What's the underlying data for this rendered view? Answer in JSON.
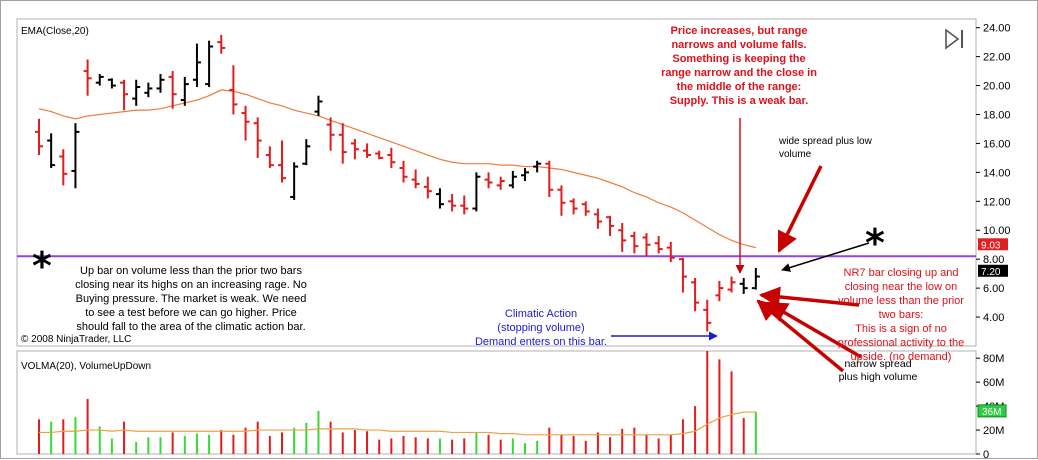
{
  "chart_data": [
    {
      "type": "ohlc",
      "indicator_label": "EMA(Close,20)",
      "ylim": [
        2.0,
        24.6
      ],
      "y_ticks": [
        "24.00",
        "22.00",
        "20.00",
        "18.00",
        "16.00",
        "14.00",
        "12.00",
        "10.00",
        "8.00",
        "6.00",
        "4.00"
      ],
      "y_tick_values": [
        24,
        22,
        20,
        18,
        16,
        14,
        12,
        10,
        8,
        6,
        4
      ],
      "bars": [
        {
          "h": 17.7,
          "l": 15.2,
          "o": 16.8,
          "c": 15.8,
          "color": "red"
        },
        {
          "h": 16.7,
          "l": 14.3,
          "o": 16.2,
          "c": 14.5,
          "color": "black"
        },
        {
          "h": 15.6,
          "l": 13.1,
          "o": 15.1,
          "c": 13.9,
          "color": "red"
        },
        {
          "h": 17.4,
          "l": 12.9,
          "o": 14.1,
          "c": 16.8,
          "color": "black"
        },
        {
          "h": 21.8,
          "l": 19.3,
          "o": 21.0,
          "c": 20.5,
          "color": "red"
        },
        {
          "h": 20.8,
          "l": 20.0,
          "o": 20.2,
          "c": 20.6,
          "color": "black"
        },
        {
          "h": 20.5,
          "l": 19.8,
          "o": 20.4,
          "c": 20.0,
          "color": "black"
        },
        {
          "h": 20.4,
          "l": 18.3,
          "o": 20.2,
          "c": 19.4,
          "color": "red"
        },
        {
          "h": 20.4,
          "l": 18.6,
          "o": 19.1,
          "c": 19.9,
          "color": "black"
        },
        {
          "h": 20.2,
          "l": 19.2,
          "o": 19.5,
          "c": 19.8,
          "color": "black"
        },
        {
          "h": 20.8,
          "l": 19.5,
          "o": 19.8,
          "c": 20.4,
          "color": "black"
        },
        {
          "h": 21.0,
          "l": 18.4,
          "o": 20.6,
          "c": 19.4,
          "color": "red"
        },
        {
          "h": 20.6,
          "l": 18.6,
          "o": 19.0,
          "c": 20.1,
          "color": "black"
        },
        {
          "h": 22.9,
          "l": 19.9,
          "o": 20.4,
          "c": 21.6,
          "color": "black"
        },
        {
          "h": 23.1,
          "l": 19.9,
          "o": 20.1,
          "c": 22.7,
          "color": "black"
        },
        {
          "h": 23.5,
          "l": 22.2,
          "o": 23.0,
          "c": 22.6,
          "color": "red"
        },
        {
          "h": 21.4,
          "l": 18.0,
          "o": 19.7,
          "c": 18.7,
          "color": "red"
        },
        {
          "h": 18.6,
          "l": 16.2,
          "o": 18.1,
          "c": 17.5,
          "color": "red"
        },
        {
          "h": 17.8,
          "l": 15.0,
          "o": 17.4,
          "c": 16.2,
          "color": "red"
        },
        {
          "h": 15.8,
          "l": 14.3,
          "o": 15.2,
          "c": 14.5,
          "color": "red"
        },
        {
          "h": 16.2,
          "l": 13.3,
          "o": 14.5,
          "c": 13.6,
          "color": "red"
        },
        {
          "h": 14.7,
          "l": 12.1,
          "o": 12.3,
          "c": 14.4,
          "color": "black"
        },
        {
          "h": 16.3,
          "l": 14.5,
          "o": 14.6,
          "c": 15.8,
          "color": "black"
        },
        {
          "h": 19.3,
          "l": 17.9,
          "o": 18.2,
          "c": 18.9,
          "color": "black"
        },
        {
          "h": 17.8,
          "l": 15.5,
          "o": 17.3,
          "c": 16.6,
          "color": "red"
        },
        {
          "h": 17.4,
          "l": 14.6,
          "o": 16.6,
          "c": 15.4,
          "color": "red"
        },
        {
          "h": 16.3,
          "l": 14.9,
          "o": 16.0,
          "c": 15.6,
          "color": "red"
        },
        {
          "h": 16.0,
          "l": 15.0,
          "o": 15.5,
          "c": 15.2,
          "color": "red"
        },
        {
          "h": 15.5,
          "l": 14.9,
          "o": 15.3,
          "c": 15.0,
          "color": "red"
        },
        {
          "h": 15.7,
          "l": 14.3,
          "o": 15.2,
          "c": 14.7,
          "color": "red"
        },
        {
          "h": 14.8,
          "l": 13.3,
          "o": 14.3,
          "c": 13.7,
          "color": "red"
        },
        {
          "h": 14.2,
          "l": 12.9,
          "o": 13.5,
          "c": 13.2,
          "color": "red"
        },
        {
          "h": 13.7,
          "l": 12.2,
          "o": 13.0,
          "c": 12.7,
          "color": "red"
        },
        {
          "h": 12.9,
          "l": 11.5,
          "o": 12.5,
          "c": 11.8,
          "color": "black"
        },
        {
          "h": 12.5,
          "l": 11.3,
          "o": 12.0,
          "c": 11.7,
          "color": "red"
        },
        {
          "h": 12.4,
          "l": 11.1,
          "o": 11.7,
          "c": 11.5,
          "color": "red"
        },
        {
          "h": 14.0,
          "l": 11.3,
          "o": 11.5,
          "c": 13.7,
          "color": "black"
        },
        {
          "h": 14.0,
          "l": 12.9,
          "o": 13.5,
          "c": 13.3,
          "color": "red"
        },
        {
          "h": 13.7,
          "l": 12.8,
          "o": 13.1,
          "c": 13.4,
          "color": "red"
        },
        {
          "h": 14.1,
          "l": 12.9,
          "o": 13.1,
          "c": 13.7,
          "color": "black"
        },
        {
          "h": 14.3,
          "l": 13.4,
          "o": 13.8,
          "c": 14.0,
          "color": "black"
        },
        {
          "h": 14.8,
          "l": 14.0,
          "o": 14.4,
          "c": 14.6,
          "color": "black"
        },
        {
          "h": 14.8,
          "l": 12.3,
          "o": 14.6,
          "c": 12.8,
          "color": "red"
        },
        {
          "h": 13.1,
          "l": 11.0,
          "o": 12.8,
          "c": 11.9,
          "color": "red"
        },
        {
          "h": 12.2,
          "l": 11.1,
          "o": 12.0,
          "c": 11.5,
          "color": "red"
        },
        {
          "h": 12.0,
          "l": 11.0,
          "o": 11.8,
          "c": 11.3,
          "color": "red"
        },
        {
          "h": 11.5,
          "l": 10.1,
          "o": 11.1,
          "c": 10.6,
          "color": "red"
        },
        {
          "h": 11.0,
          "l": 9.6,
          "o": 10.9,
          "c": 10.3,
          "color": "red"
        },
        {
          "h": 10.5,
          "l": 8.5,
          "o": 10.0,
          "c": 9.3,
          "color": "red"
        },
        {
          "h": 9.9,
          "l": 8.4,
          "o": 9.6,
          "c": 8.9,
          "color": "red"
        },
        {
          "h": 9.8,
          "l": 8.2,
          "o": 9.5,
          "c": 9.0,
          "color": "red"
        },
        {
          "h": 9.6,
          "l": 8.4,
          "o": 9.1,
          "c": 8.7,
          "color": "red"
        },
        {
          "h": 9.2,
          "l": 7.8,
          "o": 8.8,
          "c": 8.1,
          "color": "red"
        },
        {
          "h": 8.1,
          "l": 5.7,
          "o": 8.0,
          "c": 6.8,
          "color": "red"
        },
        {
          "h": 6.7,
          "l": 4.4,
          "o": 6.4,
          "c": 5.0,
          "color": "red"
        },
        {
          "h": 5.2,
          "l": 3.0,
          "o": 4.5,
          "c": 3.6,
          "color": "red"
        },
        {
          "h": 6.5,
          "l": 5.1,
          "o": 5.5,
          "c": 6.0,
          "color": "red"
        },
        {
          "h": 6.8,
          "l": 5.7,
          "o": 5.9,
          "c": 6.4,
          "color": "red"
        },
        {
          "h": 6.7,
          "l": 5.6,
          "o": 6.3,
          "c": 6.0,
          "color": "black"
        },
        {
          "h": 7.4,
          "l": 5.9,
          "o": 6.0,
          "c": 6.8,
          "color": "black"
        }
      ],
      "ema": [
        18.4,
        18.2,
        17.9,
        17.7,
        17.9,
        18.0,
        18.1,
        18.2,
        18.3,
        18.3,
        18.4,
        18.6,
        18.8,
        19.0,
        19.3,
        19.7,
        19.6,
        19.4,
        19.1,
        18.8,
        18.6,
        18.3,
        18.1,
        17.9,
        17.6,
        17.3,
        17.0,
        16.7,
        16.4,
        16.1,
        15.8,
        15.5,
        15.2,
        14.9,
        14.7,
        14.6,
        14.6,
        14.6,
        14.5,
        14.5,
        14.4,
        14.4,
        14.3,
        14.2,
        14.0,
        13.8,
        13.6,
        13.3,
        13.0,
        12.6,
        12.3,
        11.9,
        11.6,
        11.2,
        10.7,
        10.2,
        9.7,
        9.3,
        9.0,
        8.8
      ],
      "horizontal_line": 8.2,
      "price_tags": [
        {
          "text": "9.03",
          "value": 9.03,
          "color": "#e02020"
        },
        {
          "text": "7.20",
          "value": 7.2,
          "color": "#000000"
        }
      ]
    },
    {
      "type": "bar",
      "indicator_label": "VOLMA(20), VolumeUpDown",
      "ylim": [
        0,
        86
      ],
      "y_ticks": [
        "80M",
        "60M",
        "40M",
        "20M",
        "0"
      ],
      "y_tick_values": [
        80,
        60,
        40,
        20,
        0
      ],
      "volume_tag": "36M",
      "volume_tag_value": 36,
      "volumes": [
        {
          "v": 29,
          "color": "red"
        },
        {
          "v": 27,
          "color": "green"
        },
        {
          "v": 29,
          "color": "red"
        },
        {
          "v": 31,
          "color": "green"
        },
        {
          "v": 46,
          "color": "red"
        },
        {
          "v": 23,
          "color": "green"
        },
        {
          "v": 13,
          "color": "green"
        },
        {
          "v": 27,
          "color": "red"
        },
        {
          "v": 10,
          "color": "green"
        },
        {
          "v": 14,
          "color": "green"
        },
        {
          "v": 14,
          "color": "green"
        },
        {
          "v": 18,
          "color": "red"
        },
        {
          "v": 15,
          "color": "green"
        },
        {
          "v": 17,
          "color": "green"
        },
        {
          "v": 16,
          "color": "green"
        },
        {
          "v": 20,
          "color": "red"
        },
        {
          "v": 16,
          "color": "red"
        },
        {
          "v": 22,
          "color": "red"
        },
        {
          "v": 27,
          "color": "red"
        },
        {
          "v": 15,
          "color": "red"
        },
        {
          "v": 18,
          "color": "red"
        },
        {
          "v": 22,
          "color": "green"
        },
        {
          "v": 26,
          "color": "green"
        },
        {
          "v": 36,
          "color": "green"
        },
        {
          "v": 27,
          "color": "red"
        },
        {
          "v": 18,
          "color": "red"
        },
        {
          "v": 20,
          "color": "red"
        },
        {
          "v": 19,
          "color": "red"
        },
        {
          "v": 12,
          "color": "red"
        },
        {
          "v": 13,
          "color": "red"
        },
        {
          "v": 15,
          "color": "red"
        },
        {
          "v": 14,
          "color": "red"
        },
        {
          "v": 13,
          "color": "red"
        },
        {
          "v": 13,
          "color": "green"
        },
        {
          "v": 12,
          "color": "red"
        },
        {
          "v": 13,
          "color": "red"
        },
        {
          "v": 18,
          "color": "green"
        },
        {
          "v": 16,
          "color": "red"
        },
        {
          "v": 12,
          "color": "red"
        },
        {
          "v": 13,
          "color": "green"
        },
        {
          "v": 9,
          "color": "green"
        },
        {
          "v": 11,
          "color": "green"
        },
        {
          "v": 22,
          "color": "red"
        },
        {
          "v": 16,
          "color": "red"
        },
        {
          "v": 15,
          "color": "red"
        },
        {
          "v": 11,
          "color": "red"
        },
        {
          "v": 18,
          "color": "red"
        },
        {
          "v": 14,
          "color": "red"
        },
        {
          "v": 21,
          "color": "red"
        },
        {
          "v": 22,
          "color": "red"
        },
        {
          "v": 16,
          "color": "red"
        },
        {
          "v": 13,
          "color": "red"
        },
        {
          "v": 16,
          "color": "red"
        },
        {
          "v": 29,
          "color": "red"
        },
        {
          "v": 40,
          "color": "red"
        },
        {
          "v": 88,
          "color": "red"
        },
        {
          "v": 79,
          "color": "red"
        },
        {
          "v": 69,
          "color": "red"
        },
        {
          "v": 30,
          "color": "red"
        },
        {
          "v": 35,
          "color": "green"
        }
      ],
      "volma": [
        18,
        18,
        19,
        19,
        20,
        20,
        19,
        20,
        19,
        19,
        19,
        19,
        19,
        19,
        19,
        19,
        19,
        19,
        20,
        20,
        20,
        20,
        20,
        21,
        21,
        21,
        21,
        20,
        20,
        19,
        19,
        19,
        19,
        19,
        18,
        18,
        18,
        18,
        17,
        17,
        16,
        16,
        16,
        16,
        16,
        16,
        16,
        16,
        16,
        16,
        16,
        16,
        16,
        17,
        19,
        25,
        30,
        33,
        35,
        35
      ]
    }
  ],
  "annotations": {
    "left_note": "Up bar on volume less than the prior two bars\nclosing near its highs on an increasing rage. No\nBuying pressure. The market is weak. We need\nto see a test before we can go higher. Price\nshould fall to the area of the climatic action bar.",
    "top_note": "Price increases, but range\nnarrows and volume falls.\nSomething is keeping the\nrange narrow and the close in\nthe middle of the range:\nSupply. This is a weak bar.",
    "climax_note": "Climatic Action\n(stopping volume)\nDemand enters on this bar.",
    "wide_note": "wide spread plus low\nvolume",
    "nr7_note": "NR7 bar closing up and\nclosing near the low on\nvolume less than the prior\ntwo bars:\nThis is a sign of no\nprofessional activity to the\nupside. (no demand)",
    "narrow_note": "narrow spread\nplus high volume",
    "copyright": "© 2008 NinjaTrader, LLC"
  },
  "colors": {
    "up_bar": "#e21b1b",
    "black_bar": "#000000",
    "ema": "#f07a3c",
    "horizontal_line": "#9a40e0",
    "volume_red": "#e21b1b",
    "volume_green": "#38d838",
    "volma": "#f0a040",
    "annotation_red": "#e0101a",
    "annotation_blue": "#1a1ad8"
  },
  "icons": {
    "play": "play-end-icon",
    "star": "asterisk-icon"
  }
}
